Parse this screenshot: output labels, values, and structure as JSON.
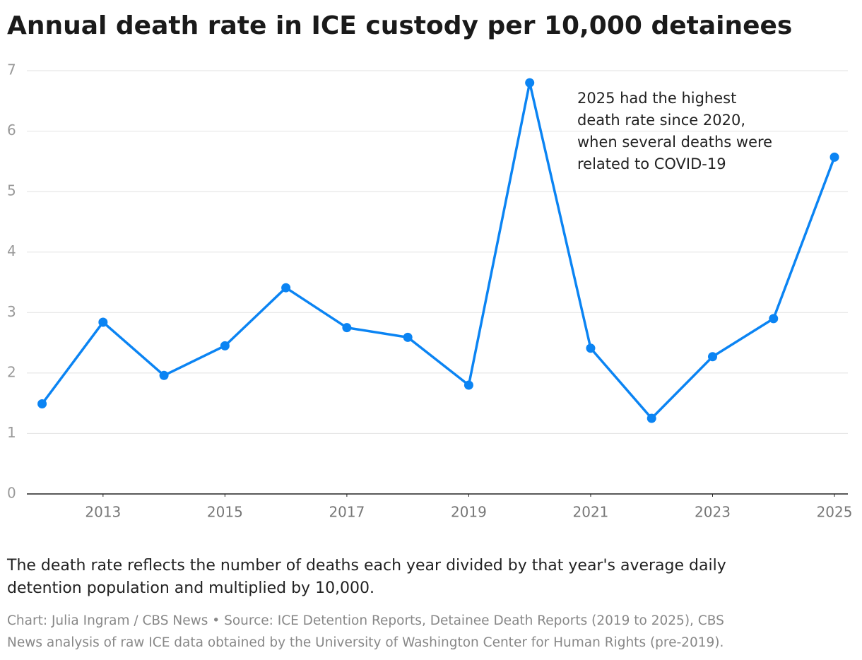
{
  "chart_data": {
    "type": "line",
    "title": "Annual death rate in ICE custody per 10,000 detainees",
    "x": [
      2012,
      2013,
      2014,
      2015,
      2016,
      2017,
      2018,
      2019,
      2020,
      2021,
      2022,
      2023,
      2024,
      2025
    ],
    "series": [
      {
        "name": "Death rate",
        "color": "#0b84f3",
        "values": [
          1.49,
          2.84,
          1.96,
          2.45,
          3.41,
          2.75,
          2.59,
          1.8,
          6.8,
          2.41,
          1.25,
          2.27,
          2.9,
          5.57
        ]
      }
    ],
    "xlim": [
      2011.75,
      2025.22
    ],
    "xticks": [
      2013,
      2015,
      2017,
      2019,
      2021,
      2023,
      2025
    ],
    "ylim": [
      0,
      7
    ],
    "yticks": [
      0,
      1,
      2,
      3,
      4,
      5,
      6,
      7
    ],
    "grid": true,
    "annotation": [
      "2025 had the highest",
      "death rate since 2020,",
      "when several deaths were",
      "related to COVID-19"
    ],
    "note": [
      "The death rate reflects the number of deaths each year divided by that year's average daily",
      "detention population and multiplied by 10,000."
    ],
    "source": [
      "Chart: Julia Ingram / CBS News • Source: ICE Detention Reports, Detainee Death Reports (2019 to 2025), CBS",
      "News analysis of raw ICE data obtained by the University of Washington Center for Human Rights (pre-2019)."
    ]
  }
}
